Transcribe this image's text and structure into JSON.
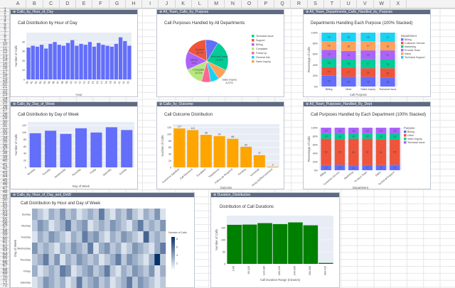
{
  "columns": [
    "A",
    "B",
    "C",
    "D",
    "E",
    "F",
    "G",
    "H",
    "I",
    "J",
    "K",
    "L",
    "M",
    "N",
    "O",
    "P",
    "Q",
    "R",
    "S",
    "T",
    "U",
    "V",
    "W",
    "X"
  ],
  "rows": [
    "1",
    "2",
    "3",
    "4",
    "5",
    "6",
    "7",
    "8",
    "9",
    "10",
    "11",
    "12",
    "13",
    "14",
    "15",
    "16",
    "17",
    "18",
    "19",
    "20",
    "21",
    "22",
    "23",
    "24",
    "25",
    "26",
    "27",
    "28",
    "29",
    "30",
    "31",
    "32",
    "33",
    "34",
    "35",
    "36",
    "37",
    "38",
    "39",
    "40",
    "41",
    "42",
    "43",
    "44",
    "45",
    "46",
    "47",
    "48",
    "49",
    "50",
    "51",
    "52",
    "53",
    "54",
    "55",
    "56",
    "57",
    "58",
    "59",
    "60",
    "61",
    "62",
    "63",
    "64",
    "65",
    "66",
    "67",
    "68",
    "69",
    "70",
    "71",
    "72"
  ],
  "panels": {
    "p1": {
      "tab": "⊕ Calls_by_Hour_of_Day",
      "title": "Call Distribution by Hour of Day"
    },
    "p2": {
      "tab": "⊕ All_Team_Calls_by_Purpose",
      "title": "Call Purposes Handled by All Departments"
    },
    "p3": {
      "tab": "⊕ All_Team_Departments_Calls_Handled_by_Purpose",
      "title": "Departments Handling Each Purpose (100% Stacked)"
    },
    "p4": {
      "tab": "⊕ Calls_by_Day_of_Week",
      "title": "Call Distribution by Day of Week"
    },
    "p5": {
      "tab": "⊕ Calls_by_Outcome",
      "title": "Call Outcome Distribution"
    },
    "p6": {
      "tab": "⊕ All_Team_Purposes_Handled_By_Dept",
      "title": "Call Purposes Handled by Each Department (100% Stacked)"
    },
    "p7": {
      "tab": "⊕ Calls_by_Hour_of_Day_and_DoW",
      "title": "Call Distribution by Hour and Day of Week"
    },
    "p8": {
      "tab": "⊕ Duration_Distribution",
      "title": "Distribution of Call Durations"
    }
  },
  "chart_data": [
    {
      "id": "hour",
      "type": "bar",
      "title": "Call Distribution by Hour of Day",
      "xlabel": "Hour",
      "ylabel": "Number of Calls",
      "categories": [
        "00",
        "01",
        "02",
        "03",
        "04",
        "05",
        "06",
        "07",
        "08",
        "09",
        "10",
        "11",
        "12",
        "13",
        "14",
        "15",
        "16",
        "17",
        "18",
        "19",
        "20",
        "21",
        "22",
        "23"
      ],
      "values": [
        34,
        36,
        35,
        37,
        33,
        38,
        40,
        37,
        36,
        39,
        42,
        36,
        38,
        37,
        40,
        35,
        39,
        37,
        36,
        35,
        38,
        45,
        41,
        36
      ],
      "ylim": [
        0,
        50
      ],
      "yticks": [
        0,
        10,
        20,
        30,
        40
      ],
      "color": "#636efa"
    },
    {
      "id": "purpose",
      "type": "pie",
      "title": "Call Purposes Handled by All Departments",
      "slices": [
        {
          "label": "Technical Issue",
          "value": 23.5,
          "color": "#00cc96"
        },
        {
          "label": "Sales Inquiry",
          "value": 8.37,
          "color": "#ffa15a"
        },
        {
          "label": "General Info",
          "value": 6.5,
          "color": "#19d3f3"
        },
        {
          "label": "Follow up",
          "value": 7.0,
          "color": "#ff6692"
        },
        {
          "label": "Complaint",
          "value": 14.2,
          "color": "#b6e880"
        },
        {
          "label": "Billing",
          "value": 14.0,
          "color": "#ab63fa"
        },
        {
          "label": "Support",
          "value": 16.7,
          "color": "#ef553b"
        },
        {
          "label": "Other",
          "value": 9.73,
          "color": "#636efa"
        }
      ],
      "labels_shown": [
        {
          "text": "Technical Issue",
          "pct": "23.5%"
        },
        {
          "text": "Sales Inquiry",
          "pct": "8.37%"
        },
        {
          "text": "Support",
          "pct": "16.7%"
        },
        {
          "text": "Billing",
          "pct": "14%"
        },
        {
          "text": "Complaint",
          "pct": "14.2%"
        }
      ],
      "legend": [
        "Technical Issue",
        "Support",
        "Billing",
        "Complaint",
        "Follow up",
        "General Info",
        "Sales Inquiry"
      ]
    },
    {
      "id": "dept_by_purpose",
      "type": "bar",
      "stacked": "100%",
      "title": "Departments Handling Each Purpose (100% Stacked)",
      "xlabel": "Call Purpose",
      "ylabel": "Percentage of Calls",
      "categories": [
        "Billing",
        "Other",
        "Sales Inquiry",
        "Technical Issue"
      ],
      "series": [
        {
          "name": "Billing",
          "color": "#636efa",
          "values": [
            20,
            18,
            18,
            16
          ]
        },
        {
          "name": "Customer Service",
          "color": "#ef553b",
          "values": [
            16,
            17,
            16,
            18
          ]
        },
        {
          "name": "Marketing",
          "color": "#00cc96",
          "values": [
            16,
            15,
            17,
            16
          ]
        },
        {
          "name": "Product Team",
          "color": "#ab63fa",
          "values": [
            16,
            16,
            16,
            17
          ]
        },
        {
          "name": "Sales",
          "color": "#ffa15a",
          "values": [
            16,
            18,
            17,
            16
          ]
        },
        {
          "name": "Technical Support",
          "color": "#19d3f3",
          "values": [
            16,
            16,
            16,
            17
          ]
        }
      ],
      "legend_title": "Department",
      "yticks": [
        "0%",
        "20%",
        "40%",
        "60%",
        "80%",
        "100%"
      ]
    },
    {
      "id": "dow",
      "type": "bar",
      "title": "Call Distribution by Day of Week",
      "xlabel": "Day of Week",
      "ylabel": "Number of Calls",
      "categories": [
        "Monday",
        "Tuesday",
        "Wednesday",
        "Thursday",
        "Friday",
        "Saturday",
        "Sunday"
      ],
      "values": [
        98,
        105,
        96,
        112,
        100,
        115,
        107
      ],
      "ylim": [
        0,
        130
      ],
      "yticks": [
        0,
        20,
        40,
        60,
        80,
        100,
        120
      ],
      "color": "#636efa"
    },
    {
      "id": "outcome",
      "type": "bar",
      "title": "Call Outcome Distribution",
      "xlabel": "Outcome",
      "ylabel": "Number of Calls",
      "categories": [
        "Customer Satisfied",
        "Call Resolved",
        "Escalated",
        "Transferred",
        "Follow Up Required",
        "Pending",
        "Voicemail",
        "Hung Up/Disconnected"
      ],
      "values": [
        117,
        112,
        98,
        94,
        86,
        62,
        37,
        2
      ],
      "labels": [
        "117",
        "112",
        "98",
        "94",
        "86",
        "62",
        "37",
        "2"
      ],
      "ylim": [
        0,
        130
      ],
      "yticks": [
        0,
        20,
        40,
        60,
        80,
        100,
        120
      ],
      "color": "#ffa500"
    },
    {
      "id": "purpose_by_dept",
      "type": "bar",
      "stacked": "100%",
      "title": "Call Purposes Handled by Each Department (100% Stacked)",
      "xlabel": "Department",
      "ylabel": "Percentage of Calls",
      "categories": [
        "Billing",
        "Customer Service",
        "Marketing",
        "Product Team",
        "Sales",
        "Technical Support"
      ],
      "series": [
        {
          "name": "Billing",
          "color": "#636efa",
          "values": [
            12,
            13,
            11,
            12,
            12,
            13
          ]
        },
        {
          "name": "Other",
          "color": "#ef553b",
          "values": [
            62,
            60,
            63,
            62,
            61,
            60
          ]
        },
        {
          "name": "Sales Inquiry",
          "color": "#00cc96",
          "values": [
            12,
            12,
            11,
            12,
            13,
            12
          ]
        },
        {
          "name": "Technical Issue",
          "color": "#ab63fa",
          "values": [
            14,
            15,
            15,
            14,
            14,
            15
          ]
        }
      ],
      "legend_title": "Purpose",
      "yticks": [
        "0%",
        "20%",
        "40%",
        "60%",
        "80%",
        "100%"
      ]
    },
    {
      "id": "heatmap",
      "type": "heatmap",
      "title": "Call Distribution by Hour and Day of Week",
      "ylabel": "Day of Week",
      "rows": [
        "Sunday",
        "Monday",
        "Tuesday",
        "Wednesday",
        "Thursday",
        "Friday",
        "Saturday"
      ],
      "colorbar_title": "Number of Calls",
      "colorbar_ticks": [
        "8",
        "6",
        "4",
        "2"
      ],
      "cols": 24,
      "values": [
        [
          3,
          2,
          1,
          3,
          2,
          4,
          2,
          3,
          1,
          2,
          3,
          2,
          5,
          2,
          1,
          3,
          2,
          4,
          2,
          1,
          3,
          2,
          4,
          1
        ],
        [
          2,
          4,
          3,
          1,
          2,
          3,
          5,
          2,
          3,
          4,
          1,
          2,
          3,
          2,
          4,
          3,
          2,
          1,
          3,
          5,
          2,
          3,
          2,
          4
        ],
        [
          1,
          3,
          2,
          4,
          3,
          2,
          1,
          3,
          2,
          5,
          3,
          4,
          2,
          1,
          3,
          2,
          4,
          3,
          2,
          1,
          6,
          2,
          3,
          2
        ],
        [
          4,
          2,
          3,
          2,
          1,
          3,
          2,
          4,
          3,
          2,
          5,
          1,
          3,
          4,
          2,
          3,
          1,
          2,
          4,
          3,
          2,
          1,
          3,
          5
        ],
        [
          2,
          3,
          5,
          2,
          4,
          1,
          3,
          2,
          4,
          3,
          2,
          3,
          1,
          2,
          3,
          5,
          2,
          4,
          3,
          2,
          1,
          3,
          8,
          2
        ],
        [
          3,
          1,
          2,
          3,
          2,
          5,
          4,
          1,
          2,
          3,
          4,
          2,
          3,
          5,
          2,
          1,
          3,
          2,
          4,
          3,
          2,
          4,
          1,
          3
        ],
        [
          1,
          2,
          4,
          3,
          2,
          3,
          1,
          2,
          5,
          2,
          3,
          4,
          2,
          3,
          1,
          2,
          3,
          5,
          2,
          4,
          3,
          2,
          1,
          2
        ]
      ]
    },
    {
      "id": "duration",
      "type": "bar",
      "title": "Distribution of Call Durations",
      "xlabel": "Call Duration Range (minutes)",
      "ylabel": "Number of Calls",
      "categories": [
        "0-60",
        "60-120",
        "120-180",
        "180-240",
        "240-300",
        "300-360",
        "360-420"
      ],
      "values": [
        162,
        163,
        169,
        165,
        172,
        160,
        4
      ],
      "ylim": [
        0,
        200
      ],
      "yticks": [
        0,
        50,
        100,
        150
      ],
      "color": "#008000"
    }
  ]
}
